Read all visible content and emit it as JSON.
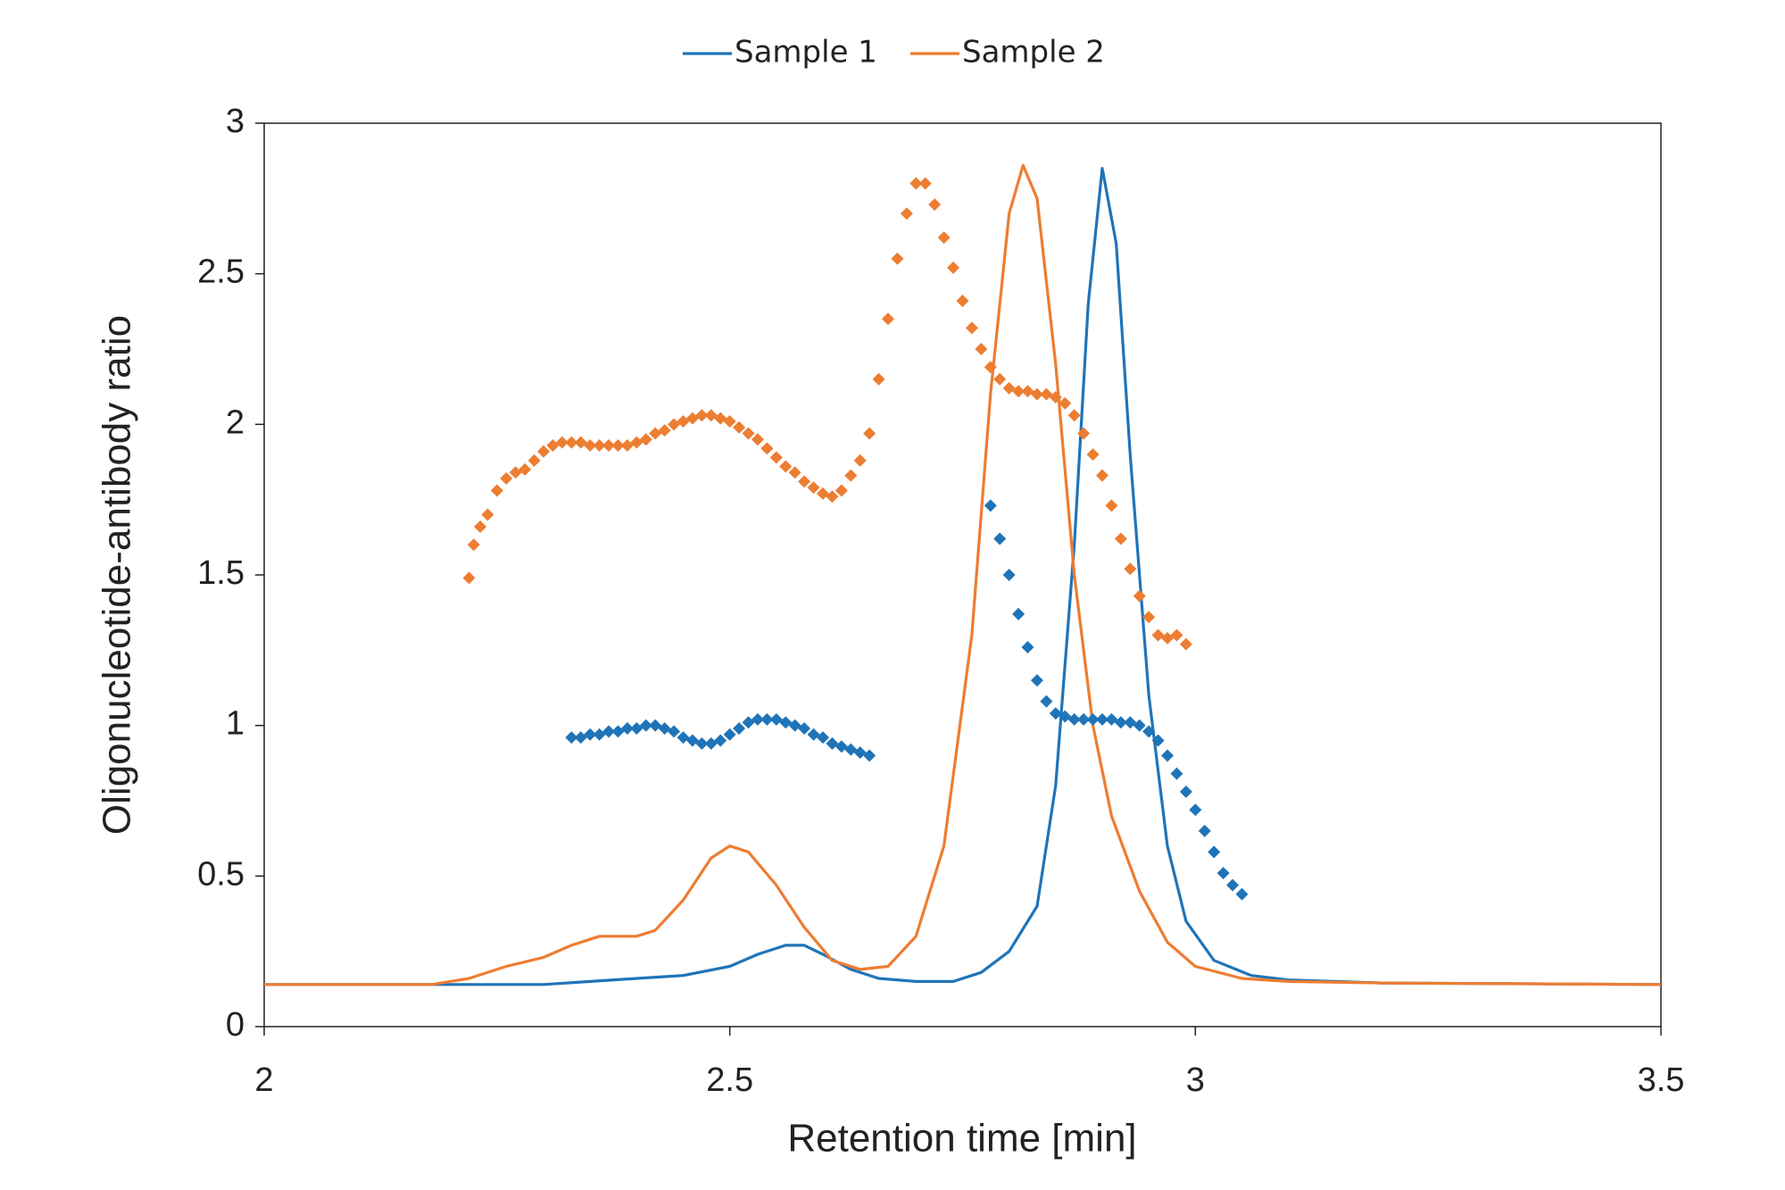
{
  "chart_data": {
    "type": "line",
    "x_label": "Retention time [min]",
    "y_label": "Oligonucleotide-antibody ratio",
    "xlim": [
      2,
      3.5
    ],
    "xticks": [
      2,
      2.5,
      3,
      3.5
    ],
    "ylim": [
      0,
      3
    ],
    "yticks": [
      0,
      0.5,
      1,
      1.5,
      2,
      2.5,
      3
    ],
    "legend": "top",
    "series": [
      {
        "name": "Sample 1",
        "color": "#1f74b8",
        "type": "line",
        "x": [
          2,
          2.3,
          2.35,
          2.4,
          2.45,
          2.5,
          2.53,
          2.56,
          2.58,
          2.6,
          2.63,
          2.66,
          2.7,
          2.74,
          2.77,
          2.8,
          2.83,
          2.85,
          2.87,
          2.885,
          2.9,
          2.915,
          2.93,
          2.95,
          2.97,
          2.99,
          3.02,
          3.06,
          3.1,
          3.2,
          3.5
        ],
        "values": [
          0.14,
          0.14,
          0.15,
          0.16,
          0.17,
          0.2,
          0.24,
          0.27,
          0.27,
          0.24,
          0.19,
          0.16,
          0.15,
          0.15,
          0.18,
          0.25,
          0.4,
          0.8,
          1.6,
          2.4,
          2.85,
          2.6,
          1.9,
          1.1,
          0.6,
          0.35,
          0.22,
          0.17,
          0.155,
          0.145,
          0.14
        ]
      },
      {
        "name": "Sample 2",
        "color": "#ed7d31",
        "type": "line",
        "x": [
          2,
          2.18,
          2.22,
          2.26,
          2.3,
          2.33,
          2.36,
          2.4,
          2.42,
          2.45,
          2.48,
          2.5,
          2.52,
          2.55,
          2.58,
          2.61,
          2.64,
          2.67,
          2.7,
          2.73,
          2.76,
          2.78,
          2.8,
          2.815,
          2.83,
          2.85,
          2.87,
          2.89,
          2.91,
          2.94,
          2.97,
          3.0,
          3.05,
          3.1,
          3.2,
          3.5
        ],
        "values": [
          0.14,
          0.14,
          0.16,
          0.2,
          0.23,
          0.27,
          0.3,
          0.3,
          0.32,
          0.42,
          0.56,
          0.6,
          0.58,
          0.47,
          0.33,
          0.22,
          0.19,
          0.2,
          0.3,
          0.6,
          1.3,
          2.1,
          2.7,
          2.86,
          2.75,
          2.2,
          1.5,
          1.0,
          0.7,
          0.45,
          0.28,
          0.2,
          0.16,
          0.15,
          0.145,
          0.14
        ]
      },
      {
        "color": "#1f74b8",
        "type": "scatter",
        "x": [
          2.33,
          2.34,
          2.35,
          2.36,
          2.37,
          2.38,
          2.39,
          2.4,
          2.41,
          2.42,
          2.43,
          2.44,
          2.45,
          2.46,
          2.47,
          2.48,
          2.49,
          2.5,
          2.51,
          2.52,
          2.53,
          2.54,
          2.55,
          2.56,
          2.57,
          2.58,
          2.59,
          2.6,
          2.61,
          2.62,
          2.63,
          2.64,
          2.65,
          2.78,
          2.79,
          2.8,
          2.81,
          2.82,
          2.83,
          2.84,
          2.85,
          2.86,
          2.87,
          2.88,
          2.89,
          2.9,
          2.91,
          2.92,
          2.93,
          2.94,
          2.95,
          2.96,
          2.97,
          2.98,
          2.99,
          3.0,
          3.01,
          3.02,
          3.03,
          3.04,
          3.05
        ],
        "values": [
          0.96,
          0.96,
          0.97,
          0.97,
          0.98,
          0.98,
          0.99,
          0.99,
          1.0,
          1.0,
          0.99,
          0.98,
          0.96,
          0.95,
          0.94,
          0.94,
          0.95,
          0.97,
          0.99,
          1.01,
          1.02,
          1.02,
          1.02,
          1.01,
          1.0,
          0.99,
          0.97,
          0.96,
          0.94,
          0.93,
          0.92,
          0.91,
          0.9,
          1.73,
          1.62,
          1.5,
          1.37,
          1.26,
          1.15,
          1.08,
          1.04,
          1.03,
          1.02,
          1.02,
          1.02,
          1.02,
          1.02,
          1.01,
          1.01,
          1.0,
          0.98,
          0.95,
          0.9,
          0.84,
          0.78,
          0.72,
          0.65,
          0.58,
          0.51,
          0.47,
          0.44
        ]
      },
      {
        "color": "#ed7d31",
        "type": "scatter",
        "x": [
          2.22,
          2.225,
          2.232,
          2.24,
          2.25,
          2.26,
          2.27,
          2.28,
          2.29,
          2.3,
          2.31,
          2.32,
          2.33,
          2.34,
          2.35,
          2.36,
          2.37,
          2.38,
          2.39,
          2.4,
          2.41,
          2.42,
          2.43,
          2.44,
          2.45,
          2.46,
          2.47,
          2.48,
          2.49,
          2.5,
          2.51,
          2.52,
          2.53,
          2.54,
          2.55,
          2.56,
          2.57,
          2.58,
          2.59,
          2.6,
          2.61,
          2.62,
          2.63,
          2.64,
          2.65,
          2.66,
          2.67,
          2.68,
          2.69,
          2.7,
          2.71,
          2.72,
          2.73,
          2.74,
          2.75,
          2.76,
          2.77,
          2.78,
          2.79,
          2.8,
          2.81,
          2.82,
          2.83,
          2.84,
          2.85,
          2.86,
          2.87,
          2.88,
          2.89,
          2.9,
          2.91,
          2.92,
          2.93,
          2.94,
          2.95,
          2.96,
          2.97,
          2.98,
          2.99
        ],
        "values": [
          1.49,
          1.6,
          1.66,
          1.7,
          1.78,
          1.82,
          1.84,
          1.85,
          1.88,
          1.91,
          1.93,
          1.94,
          1.94,
          1.94,
          1.93,
          1.93,
          1.93,
          1.93,
          1.93,
          1.94,
          1.95,
          1.97,
          1.98,
          2.0,
          2.01,
          2.02,
          2.03,
          2.03,
          2.02,
          2.01,
          1.99,
          1.97,
          1.95,
          1.92,
          1.89,
          1.86,
          1.84,
          1.81,
          1.79,
          1.77,
          1.76,
          1.78,
          1.83,
          1.88,
          1.97,
          2.15,
          2.35,
          2.55,
          2.7,
          2.8,
          2.8,
          2.73,
          2.62,
          2.52,
          2.41,
          2.32,
          2.25,
          2.19,
          2.15,
          2.12,
          2.11,
          2.11,
          2.1,
          2.1,
          2.09,
          2.07,
          2.03,
          1.97,
          1.9,
          1.83,
          1.73,
          1.62,
          1.52,
          1.43,
          1.36,
          1.3,
          1.29,
          1.3,
          1.27
        ]
      }
    ]
  }
}
